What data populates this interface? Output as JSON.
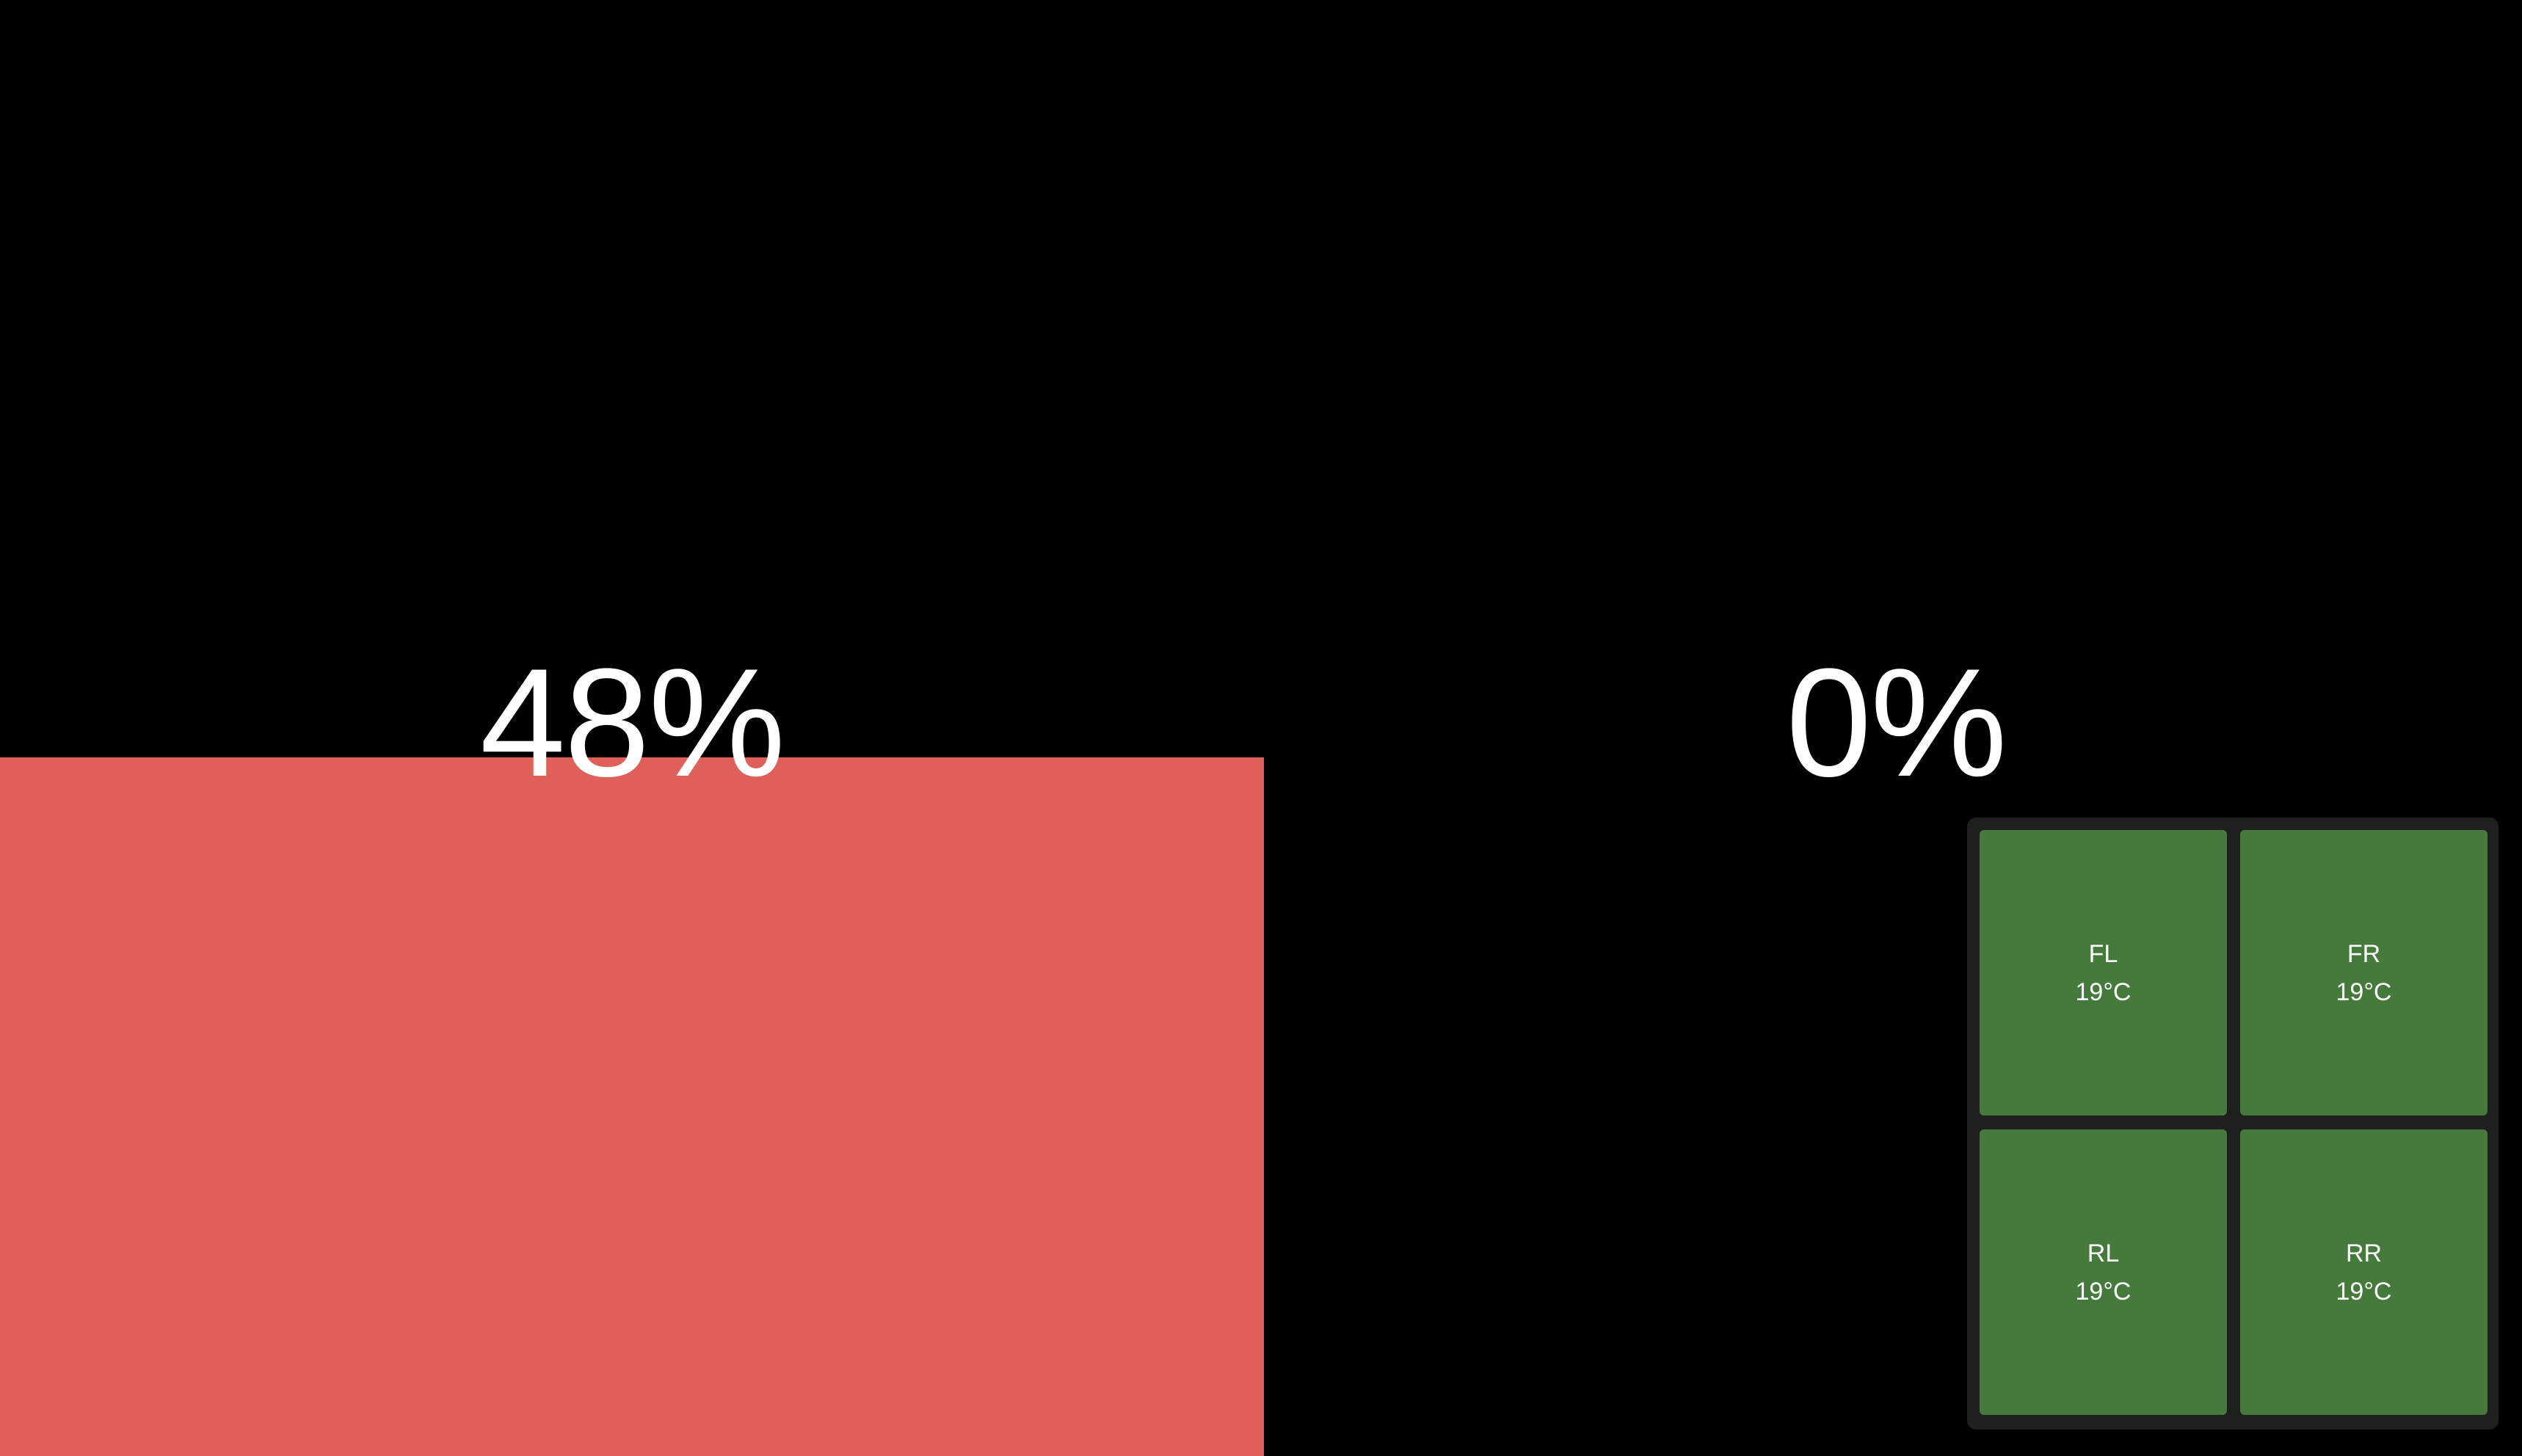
{
  "gauges": {
    "left": {
      "value_text": "48%",
      "level_percent": 48,
      "fill_color": "#df5f59"
    },
    "right": {
      "value_text": "0%",
      "level_percent": 0,
      "fill_color": "#df5f59"
    }
  },
  "tyres": {
    "fl": {
      "label": "FL",
      "temp": "19°C"
    },
    "fr": {
      "label": "FR",
      "temp": "19°C"
    },
    "rl": {
      "label": "RL",
      "temp": "19°C"
    },
    "rr": {
      "label": "RR",
      "temp": "19°C"
    },
    "cell_color": "#467a3d",
    "panel_color": "#1f1f1f"
  },
  "background_color": "#000000"
}
